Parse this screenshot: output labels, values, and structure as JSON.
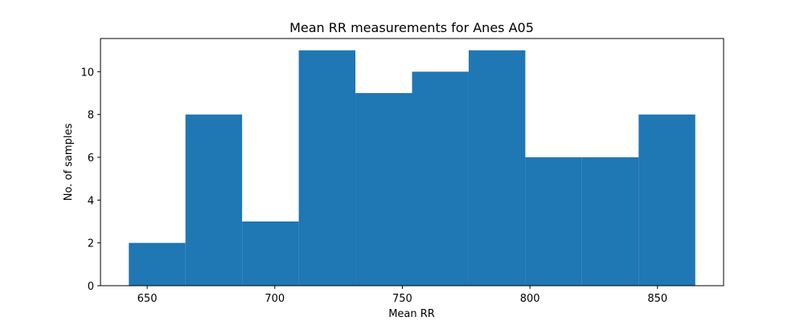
{
  "chart_data": {
    "type": "bar",
    "title": "Mean RR measurements for Anes A05",
    "xlabel": "Mean RR",
    "ylabel": "No. of samples",
    "bin_edges": [
      642.8,
      665.0,
      687.2,
      709.4,
      731.6,
      753.8,
      776.0,
      798.2,
      820.4,
      842.6,
      864.8
    ],
    "values": [
      2,
      8,
      3,
      11,
      9,
      10,
      11,
      6,
      6,
      8
    ],
    "xlim": [
      631.7,
      875.9
    ],
    "ylim": [
      0,
      11.55
    ],
    "xticks": [
      650,
      700,
      750,
      800,
      850
    ],
    "yticks": [
      0,
      2,
      4,
      6,
      8,
      10
    ],
    "bar_color": "#1f77b4",
    "grid": false
  }
}
